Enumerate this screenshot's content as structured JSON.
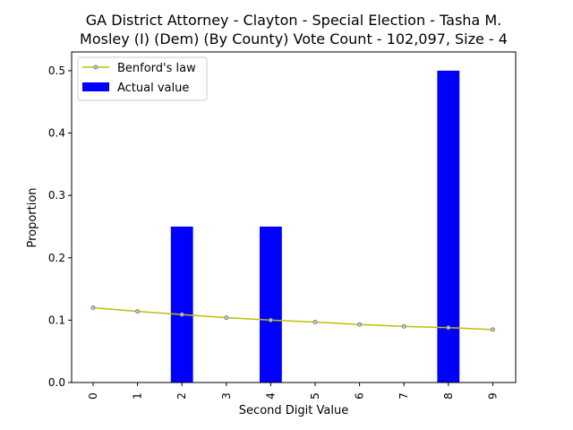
{
  "chart_data": {
    "type": "bar",
    "title_lines": [
      "GA District Attorney - Clayton - Special Election - Tasha M.",
      "Mosley (I) (Dem) (By County) Vote Count - 102,097, Size - 4"
    ],
    "xlabel": "Second Digit Value",
    "ylabel": "Proportion",
    "categories": [
      "0",
      "1",
      "2",
      "3",
      "4",
      "5",
      "6",
      "7",
      "8",
      "9"
    ],
    "ylim": [
      0,
      0.53
    ],
    "yticks": [
      "0.0",
      "0.1",
      "0.2",
      "0.3",
      "0.4",
      "0.5"
    ],
    "ytick_values": [
      0,
      0.1,
      0.2,
      0.3,
      0.4,
      0.5
    ],
    "legend_position": "upper-left",
    "grid": false,
    "series": [
      {
        "name": "Benford's law",
        "type": "line",
        "color": "#bfbf00",
        "values": [
          0.12,
          0.114,
          0.109,
          0.104,
          0.1,
          0.097,
          0.093,
          0.09,
          0.088,
          0.085
        ]
      },
      {
        "name": "Actual value",
        "type": "bar",
        "color": "#0000ff",
        "values": [
          0,
          0,
          0.25,
          0,
          0.25,
          0,
          0,
          0,
          0.5,
          0
        ]
      }
    ]
  }
}
